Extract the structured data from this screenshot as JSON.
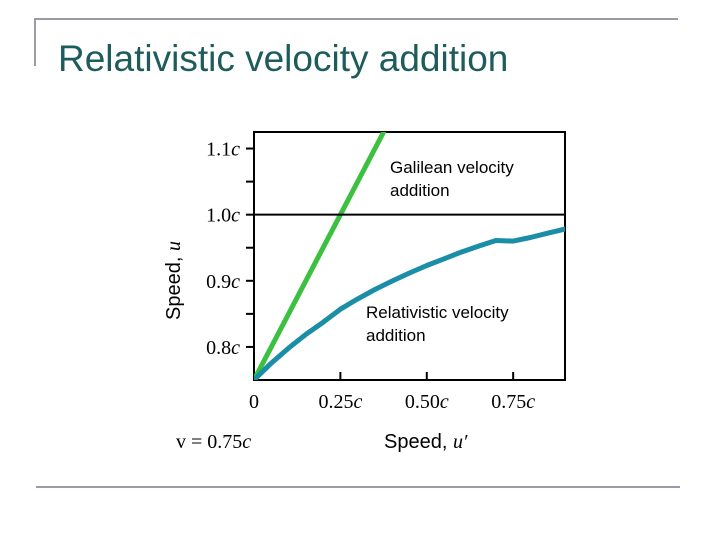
{
  "slide": {
    "title": "Relativistic velocity addition"
  },
  "chart_data": {
    "type": "line",
    "title": "Relativistic velocity addition",
    "xlabel": "Speed, u′",
    "xlabel_text": "Speed,",
    "xlabel_var": "u′",
    "ylabel": "Speed, u",
    "ylabel_text": "Speed,",
    "ylabel_var": "u",
    "xlim": [
      0,
      0.9
    ],
    "ylim": [
      0.75,
      1.125
    ],
    "x_ticks": [
      0,
      0.25,
      0.5,
      0.75
    ],
    "x_tick_labels": [
      "0",
      "0.25c",
      "0.50c",
      "0.75c"
    ],
    "y_ticks": [
      0.8,
      0.9,
      1.0,
      1.1
    ],
    "y_tick_labels": [
      "0.8c",
      "0.9c",
      "1.0c",
      "1.1c"
    ],
    "y_minor_ticks": [
      0.85,
      0.95,
      1.05
    ],
    "reference_lines": [
      {
        "y": 1.0,
        "meaning": "speed of light"
      }
    ],
    "annotation": "v = 0.75c",
    "v": 0.75,
    "series": [
      {
        "name": "Galilean velocity addition",
        "name_lines": [
          "Galilean velocity",
          "addition"
        ],
        "color": "#3cc040",
        "x": [
          0,
          0.1,
          0.2,
          0.3,
          0.375
        ],
        "y": [
          0.75,
          0.85,
          0.95,
          1.05,
          1.125
        ]
      },
      {
        "name": "Relativistic velocity addition",
        "name_lines": [
          "Relativistic velocity",
          "addition"
        ],
        "color": "#1a8ea6",
        "x": [
          0,
          0.05,
          0.1,
          0.15,
          0.2,
          0.25,
          0.3,
          0.35,
          0.4,
          0.45,
          0.5,
          0.55,
          0.6,
          0.65,
          0.7,
          0.75,
          0.8,
          0.85,
          0.9
        ],
        "y": [
          0.75,
          0.7755,
          0.7983,
          0.8189,
          0.8372,
          0.8571,
          0.8726,
          0.8868,
          0.8997,
          0.9118,
          0.9231,
          0.9333,
          0.9434,
          0.9524,
          0.9609,
          0.96,
          0.9655,
          0.972,
          0.9783
        ]
      }
    ]
  }
}
